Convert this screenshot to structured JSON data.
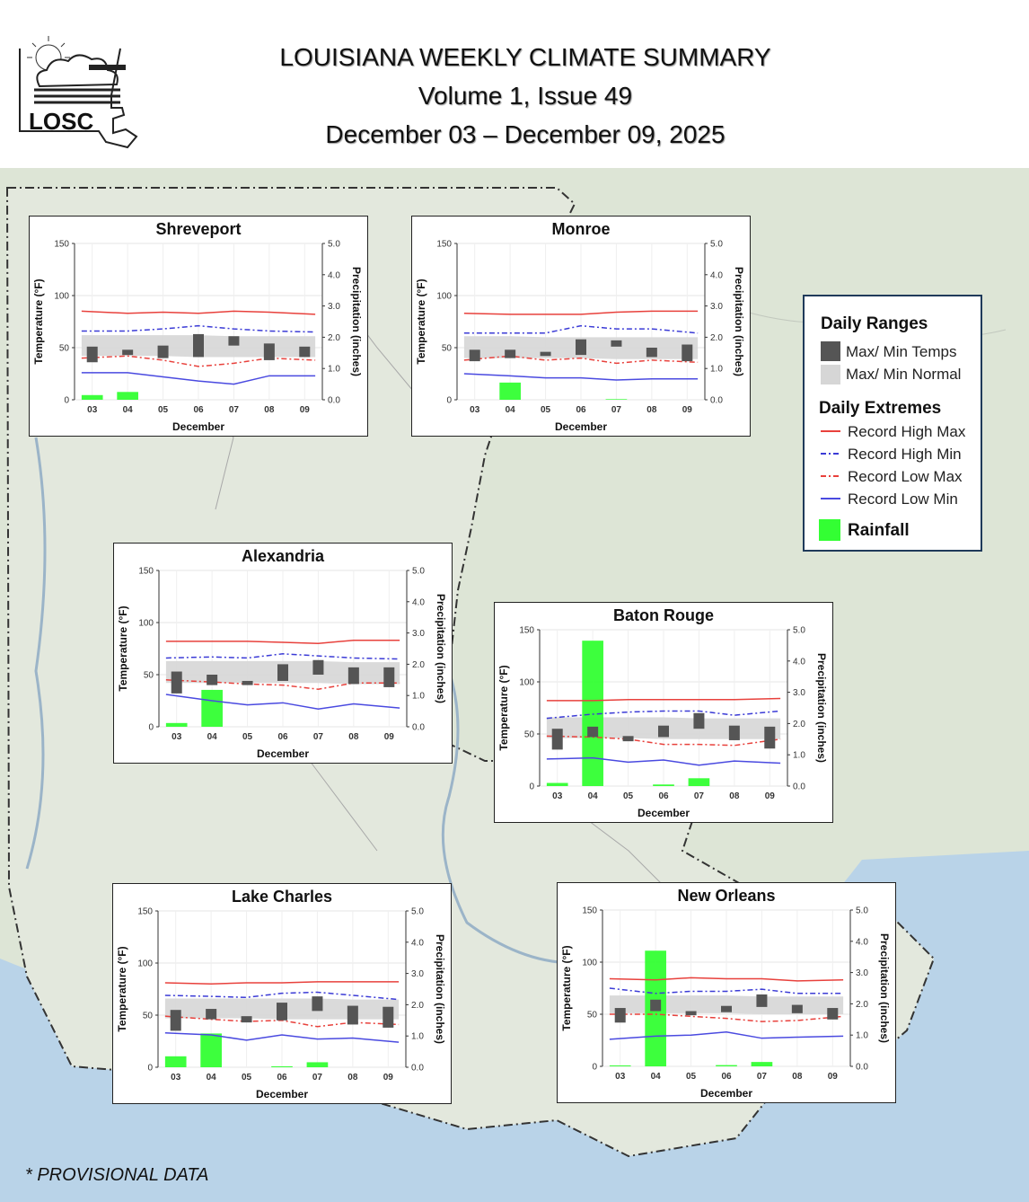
{
  "header": {
    "title": "LOUISIANA WEEKLY CLIMATE SUMMARY",
    "volume": "Volume 1, Issue 49",
    "dates": "December 03 – December 09, 2025",
    "logo_text": "LOSC"
  },
  "legend": {
    "ranges_title": "Daily Ranges",
    "maxmin_label": "Max/ Min Temps",
    "normal_label": "Max/ Min Normal",
    "extremes_title": "Daily Extremes",
    "record_high_max": "Record High Max",
    "record_high_min": "Record High Min",
    "record_low_max": "Record Low Max",
    "record_low_min": "Record Low Min",
    "rainfall": "Rainfall"
  },
  "footnote": "* PROVISIONAL DATA",
  "colors": {
    "record_high_max": "#e8413c",
    "record_high_min": "#3b3bd6",
    "record_low_max": "#e8413c",
    "record_low_min": "#4a4ae0",
    "temp_box": "#555555",
    "normal_band": "#d6d6d6",
    "rainfall": "#33ff33"
  },
  "chart_data": [
    {
      "type": "bar",
      "title": "Shreveport",
      "xlabel": "December",
      "ylabel": "Temperature (°F)",
      "y2label": "Precipitation (inches)",
      "categories": [
        "03",
        "04",
        "05",
        "06",
        "07",
        "08",
        "09"
      ],
      "ylim": [
        0,
        150
      ],
      "y2lim": [
        0,
        5
      ],
      "yticks": [
        "0",
        "50",
        "100",
        "150"
      ],
      "y2ticks": [
        "0.0",
        "1.0",
        "2.0",
        "3.0",
        "4.0",
        "5.0"
      ],
      "temp_max": [
        51,
        48,
        52,
        63,
        61,
        54,
        51
      ],
      "temp_min": [
        36,
        43,
        40,
        41,
        52,
        38,
        41
      ],
      "normal_max": [
        62,
        62,
        62,
        62,
        61,
        61,
        61
      ],
      "normal_min": [
        42,
        42,
        42,
        41,
        41,
        41,
        41
      ],
      "record_high_max": [
        85,
        83,
        84,
        83,
        85,
        84,
        82
      ],
      "record_high_min": [
        66,
        66,
        68,
        71,
        68,
        66,
        65
      ],
      "record_low_max": [
        40,
        42,
        38,
        32,
        35,
        40,
        38
      ],
      "record_low_min": [
        26,
        26,
        22,
        18,
        15,
        23,
        23
      ],
      "precip": [
        0.15,
        0.25,
        0,
        0,
        0,
        0,
        0
      ]
    },
    {
      "type": "bar",
      "title": "Monroe",
      "xlabel": "December",
      "ylabel": "Temperature (°F)",
      "y2label": "Precipitation (inches)",
      "categories": [
        "03",
        "04",
        "05",
        "06",
        "07",
        "08",
        "09"
      ],
      "ylim": [
        0,
        150
      ],
      "y2lim": [
        0,
        5
      ],
      "yticks": [
        "0",
        "50",
        "100",
        "150"
      ],
      "y2ticks": [
        "0.0",
        "1.0",
        "2.0",
        "3.0",
        "4.0",
        "5.0"
      ],
      "temp_max": [
        48,
        48,
        46,
        58,
        57,
        50,
        53
      ],
      "temp_min": [
        37,
        40,
        42,
        43,
        51,
        41,
        37
      ],
      "normal_max": [
        61,
        61,
        60,
        60,
        60,
        60,
        60
      ],
      "normal_min": [
        40,
        40,
        40,
        40,
        39,
        39,
        39
      ],
      "record_high_max": [
        83,
        82,
        82,
        82,
        84,
        85,
        85
      ],
      "record_high_min": [
        64,
        64,
        64,
        71,
        68,
        68,
        64
      ],
      "record_low_max": [
        38,
        42,
        38,
        40,
        35,
        38,
        36
      ],
      "record_low_min": [
        25,
        23,
        21,
        21,
        19,
        20,
        20
      ],
      "precip": [
        0,
        0.55,
        0,
        0,
        0.02,
        0,
        0
      ]
    },
    {
      "type": "bar",
      "title": "Alexandria",
      "xlabel": "December",
      "ylabel": "Temperature (°F)",
      "y2label": "Precipitation (inches)",
      "categories": [
        "03",
        "04",
        "05",
        "06",
        "07",
        "08",
        "09"
      ],
      "ylim": [
        0,
        150
      ],
      "y2lim": [
        0,
        5
      ],
      "yticks": [
        "0",
        "50",
        "100",
        "150"
      ],
      "y2ticks": [
        "0.0",
        "1.0",
        "2.0",
        "3.0",
        "4.0",
        "5.0"
      ],
      "temp_max": [
        53,
        50,
        44,
        60,
        64,
        57,
        57
      ],
      "temp_min": [
        32,
        40,
        40,
        44,
        50,
        41,
        38
      ],
      "normal_max": [
        63,
        63,
        63,
        63,
        63,
        62,
        62
      ],
      "normal_min": [
        42,
        42,
        42,
        42,
        42,
        41,
        41
      ],
      "record_high_max": [
        82,
        82,
        82,
        81,
        80,
        83,
        83
      ],
      "record_high_min": [
        66,
        67,
        66,
        70,
        68,
        66,
        65
      ],
      "record_low_max": [
        45,
        43,
        41,
        40,
        36,
        42,
        42
      ],
      "record_low_min": [
        31,
        25,
        21,
        23,
        17,
        22,
        18
      ],
      "precip": [
        0.12,
        1.18,
        0,
        0,
        0,
        0,
        0
      ]
    },
    {
      "type": "bar",
      "title": "Baton Rouge",
      "xlabel": "December",
      "ylabel": "Temperature (°F)",
      "y2label": "Precipitation (inches)",
      "categories": [
        "03",
        "04",
        "05",
        "06",
        "07",
        "08",
        "09"
      ],
      "ylim": [
        0,
        150
      ],
      "y2lim": [
        0,
        5
      ],
      "yticks": [
        "0",
        "50",
        "100",
        "150"
      ],
      "y2ticks": [
        "0.0",
        "1.0",
        "2.0",
        "3.0",
        "4.0",
        "5.0"
      ],
      "temp_max": [
        55,
        57,
        48,
        58,
        70,
        58,
        57
      ],
      "temp_min": [
        35,
        47,
        43,
        47,
        55,
        44,
        36
      ],
      "normal_max": [
        66,
        66,
        66,
        66,
        65,
        65,
        65
      ],
      "normal_min": [
        46,
        46,
        46,
        45,
        45,
        45,
        45
      ],
      "record_high_max": [
        82,
        82,
        83,
        83,
        83,
        83,
        84
      ],
      "record_high_min": [
        65,
        69,
        71,
        72,
        72,
        68,
        72
      ],
      "record_low_max": [
        48,
        47,
        45,
        40,
        40,
        39,
        45
      ],
      "record_low_min": [
        26,
        27,
        23,
        25,
        20,
        24,
        22
      ],
      "precip": [
        0.1,
        4.65,
        0,
        0.05,
        0.25,
        0,
        0
      ]
    },
    {
      "type": "bar",
      "title": "Lake Charles",
      "xlabel": "December",
      "ylabel": "Temperature (°F)",
      "y2label": "Precipitation (inches)",
      "categories": [
        "03",
        "04",
        "05",
        "06",
        "07",
        "08",
        "09"
      ],
      "ylim": [
        0,
        150
      ],
      "y2lim": [
        0,
        5
      ],
      "yticks": [
        "0",
        "50",
        "100",
        "150"
      ],
      "y2ticks": [
        "0.0",
        "1.0",
        "2.0",
        "3.0",
        "4.0",
        "5.0"
      ],
      "temp_max": [
        55,
        56,
        49,
        62,
        68,
        59,
        58
      ],
      "temp_min": [
        35,
        46,
        43,
        45,
        54,
        41,
        38
      ],
      "normal_max": [
        66,
        66,
        66,
        66,
        66,
        65,
        65
      ],
      "normal_min": [
        47,
        47,
        47,
        46,
        46,
        46,
        46
      ],
      "record_high_max": [
        81,
        80,
        81,
        81,
        82,
        82,
        82
      ],
      "record_high_min": [
        69,
        68,
        67,
        71,
        72,
        69,
        65
      ],
      "record_low_max": [
        49,
        46,
        44,
        45,
        39,
        43,
        41
      ],
      "record_low_min": [
        33,
        31,
        26,
        31,
        27,
        28,
        24
      ],
      "precip": [
        0.35,
        1.08,
        0,
        0.03,
        0.16,
        0,
        0
      ]
    },
    {
      "type": "bar",
      "title": "New Orleans",
      "xlabel": "December",
      "ylabel": "Temperature (°F)",
      "y2label": "Precipitation (inches)",
      "categories": [
        "03",
        "04",
        "05",
        "06",
        "07",
        "08",
        "09"
      ],
      "ylim": [
        0,
        150
      ],
      "y2lim": [
        0,
        5
      ],
      "yticks": [
        "0",
        "50",
        "100",
        "150"
      ],
      "y2ticks": [
        "0.0",
        "1.0",
        "2.0",
        "3.0",
        "4.0",
        "5.0"
      ],
      "temp_max": [
        56,
        64,
        53,
        58,
        69,
        59,
        56
      ],
      "temp_min": [
        42,
        53,
        49,
        52,
        57,
        51,
        45
      ],
      "normal_max": [
        68,
        68,
        68,
        68,
        67,
        67,
        67
      ],
      "normal_min": [
        51,
        51,
        51,
        51,
        50,
        50,
        50
      ],
      "record_high_max": [
        84,
        83,
        85,
        84,
        84,
        82,
        83
      ],
      "record_high_min": [
        75,
        70,
        72,
        72,
        74,
        70,
        70
      ],
      "record_low_max": [
        50,
        50,
        48,
        46,
        43,
        44,
        48
      ],
      "record_low_min": [
        26,
        29,
        30,
        33,
        27,
        28,
        29
      ],
      "precip": [
        0.03,
        3.7,
        0,
        0.04,
        0.14,
        0,
        0
      ]
    }
  ]
}
